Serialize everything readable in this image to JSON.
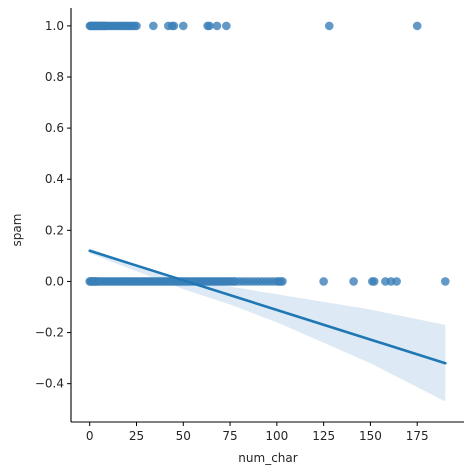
{
  "chart_data": {
    "type": "scatter",
    "title": "",
    "xlabel": "num_char",
    "ylabel": "spam",
    "xlim": [
      -10,
      200
    ],
    "ylim": [
      -0.55,
      1.07
    ],
    "xticks": [
      0,
      25,
      50,
      75,
      100,
      125,
      150,
      175
    ],
    "xtick_labels": [
      "0",
      "25",
      "50",
      "75",
      "100",
      "125",
      "150",
      "175"
    ],
    "yticks": [
      -0.4,
      -0.2,
      0.0,
      0.2,
      0.4,
      0.6,
      0.8,
      1.0
    ],
    "ytick_labels": [
      "−0.4",
      "−0.2",
      "0.0",
      "0.2",
      "0.4",
      "0.6",
      "0.8",
      "1.0"
    ],
    "grid": false,
    "series_color": "#1f77b4",
    "band_color": "#c6dcee",
    "points": {
      "spam_1_x": [
        0.1,
        0.5,
        1,
        1.5,
        2,
        2.5,
        3,
        3.5,
        4,
        4.5,
        5,
        5.5,
        6,
        6.5,
        7,
        7.5,
        8,
        8.5,
        9,
        10,
        11,
        12,
        13,
        14,
        15,
        16,
        17,
        18,
        19,
        20,
        21,
        22,
        23,
        24,
        25,
        34,
        42,
        44,
        45,
        50,
        63,
        64,
        68,
        73,
        128,
        175
      ],
      "spam_0_x": [
        0,
        0.5,
        1,
        1.5,
        2,
        2.5,
        3,
        3.5,
        4,
        5,
        6,
        7,
        8,
        9,
        10,
        11,
        12,
        13,
        14,
        15,
        16,
        17,
        18,
        19,
        20,
        21,
        22,
        23,
        24,
        25,
        26,
        27,
        28,
        29,
        30,
        31,
        32,
        33,
        34,
        35,
        36,
        37,
        38,
        39,
        40,
        41,
        42,
        43,
        44,
        45,
        46,
        47,
        48,
        49,
        50,
        51,
        52,
        53,
        54,
        55,
        56,
        57,
        58,
        59,
        60,
        61,
        62,
        63,
        64,
        65,
        66,
        67,
        68,
        69,
        70,
        71,
        72,
        73,
        74,
        75,
        76,
        77,
        78,
        80,
        82,
        84,
        86,
        88,
        90,
        92,
        94,
        96,
        98,
        100,
        101,
        102,
        103,
        125,
        141,
        151,
        152,
        158,
        161,
        164,
        190
      ]
    },
    "regression": {
      "x": [
        0,
        190
      ],
      "y": [
        0.12,
        -0.32
      ],
      "ci_x": [
        0,
        25,
        50,
        75,
        100,
        125,
        150,
        190
      ],
      "ci_upper": [
        0.13,
        0.06,
        0.01,
        -0.02,
        -0.05,
        -0.08,
        -0.11,
        -0.17
      ],
      "ci_lower": [
        0.11,
        0.04,
        -0.03,
        -0.09,
        -0.16,
        -0.24,
        -0.32,
        -0.47
      ]
    }
  }
}
